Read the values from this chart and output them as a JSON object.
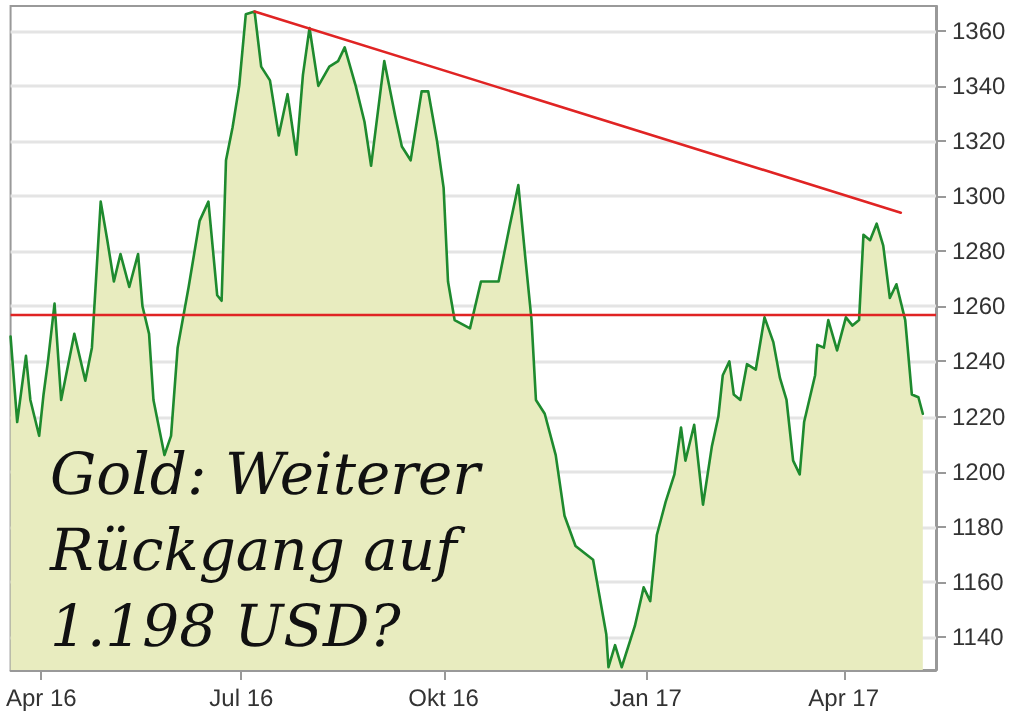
{
  "chart_data": {
    "type": "area",
    "annotations": [
      "Gold: Weiterer Rückgang auf 1.198 USD?"
    ],
    "xlim": [
      "2016-03-18",
      "2017-05-13"
    ],
    "xticks": [
      {
        "value": "2016-04-01",
        "label": "Apr 16"
      },
      {
        "value": "2016-07-01",
        "label": "Jul 16"
      },
      {
        "value": "2016-10-01",
        "label": "Okt 16"
      },
      {
        "value": "2017-01-01",
        "label": "Jan 17"
      },
      {
        "value": "2017-04-01",
        "label": "Apr 17"
      }
    ],
    "ylim": [
      1128,
      1369
    ],
    "yticks": [
      1140,
      1160,
      1180,
      1200,
      1220,
      1240,
      1260,
      1280,
      1300,
      1320,
      1340,
      1360
    ],
    "grid": "y",
    "marker": "none",
    "line_style": "solid",
    "ref_lines": [
      {
        "axis": "y",
        "value": 1257,
        "color": "#e02424"
      }
    ],
    "series": [
      {
        "color": "#1e8a2e",
        "x": [
          "2016-03-18",
          "2016-03-21",
          "2016-03-25",
          "2016-03-27",
          "2016-03-31",
          "2016-04-02",
          "2016-04-04",
          "2016-04-07",
          "2016-04-10",
          "2016-04-16",
          "2016-04-21",
          "2016-04-24",
          "2016-04-28",
          "2016-05-01",
          "2016-05-04",
          "2016-05-07",
          "2016-05-11",
          "2016-05-15",
          "2016-05-17",
          "2016-05-20",
          "2016-05-22",
          "2016-05-27",
          "2016-05-30",
          "2016-06-02",
          "2016-06-07",
          "2016-06-12",
          "2016-06-16",
          "2016-06-20",
          "2016-06-22",
          "2016-06-24",
          "2016-06-27",
          "2016-06-30",
          "2016-07-03",
          "2016-07-07",
          "2016-07-10",
          "2016-07-14",
          "2016-07-18",
          "2016-07-22",
          "2016-07-26",
          "2016-07-29",
          "2016-08-01",
          "2016-08-05",
          "2016-08-10",
          "2016-08-14",
          "2016-08-17",
          "2016-08-22",
          "2016-08-26",
          "2016-08-29",
          "2016-09-04",
          "2016-09-09",
          "2016-09-12",
          "2016-09-16",
          "2016-09-21",
          "2016-09-24",
          "2016-09-28",
          "2016-10-01",
          "2016-10-03",
          "2016-10-06",
          "2016-10-13",
          "2016-10-18",
          "2016-10-26",
          "2016-10-31",
          "2016-11-04",
          "2016-11-07",
          "2016-11-10",
          "2016-11-12",
          "2016-11-16",
          "2016-11-21",
          "2016-11-25",
          "2016-11-30",
          "2016-12-08",
          "2016-12-14",
          "2016-12-15",
          "2016-12-18",
          "2016-12-21",
          "2016-12-27",
          "2016-12-31",
          "2017-01-03",
          "2017-01-06",
          "2017-01-10",
          "2017-01-14",
          "2017-01-17",
          "2017-01-19",
          "2017-01-23",
          "2017-01-27",
          "2017-01-31",
          "2017-02-03",
          "2017-02-05",
          "2017-02-08",
          "2017-02-10",
          "2017-02-13",
          "2017-02-16",
          "2017-02-20",
          "2017-02-24",
          "2017-02-28",
          "2017-03-03",
          "2017-03-06",
          "2017-03-09",
          "2017-03-12",
          "2017-03-14",
          "2017-03-19",
          "2017-03-20",
          "2017-03-23",
          "2017-03-25",
          "2017-03-29",
          "2017-04-02",
          "2017-04-05",
          "2017-04-08",
          "2017-04-10",
          "2017-04-13",
          "2017-04-16",
          "2017-04-19",
          "2017-04-22",
          "2017-04-25",
          "2017-04-29",
          "2017-05-02",
          "2017-05-05",
          "2017-05-07"
        ],
        "values": [
          1249,
          1218,
          1242,
          1226,
          1213,
          1228,
          1240,
          1261,
          1226,
          1250,
          1233,
          1245,
          1298,
          1284,
          1269,
          1279,
          1267,
          1279,
          1260,
          1250,
          1226,
          1206,
          1213,
          1245,
          1267,
          1291,
          1298,
          1264,
          1262,
          1313,
          1325,
          1340,
          1366,
          1367,
          1347,
          1342,
          1322,
          1337,
          1315,
          1344,
          1361,
          1340,
          1347,
          1349,
          1354,
          1340,
          1327,
          1311,
          1349,
          1329,
          1318,
          1313,
          1338,
          1338,
          1320,
          1303,
          1269,
          1255,
          1252,
          1269,
          1269,
          1289,
          1304,
          1279,
          1255,
          1226,
          1221,
          1206,
          1184,
          1173,
          1168,
          1141,
          1129,
          1137,
          1129,
          1144,
          1158,
          1153,
          1177,
          1189,
          1199,
          1216,
          1204,
          1217,
          1188,
          1209,
          1220,
          1235,
          1240,
          1228,
          1226,
          1239,
          1237,
          1256,
          1247,
          1234,
          1226,
          1204,
          1199,
          1218,
          1235,
          1246,
          1245,
          1255,
          1244,
          1256,
          1253,
          1255,
          1286,
          1284,
          1290,
          1282,
          1263,
          1268,
          1255,
          1228,
          1227,
          1221
        ]
      },
      {
        "type": "line",
        "color": "#e02424",
        "x": [
          "2016-07-07",
          "2017-04-27"
        ],
        "values": [
          1367,
          1294
        ]
      }
    ]
  }
}
